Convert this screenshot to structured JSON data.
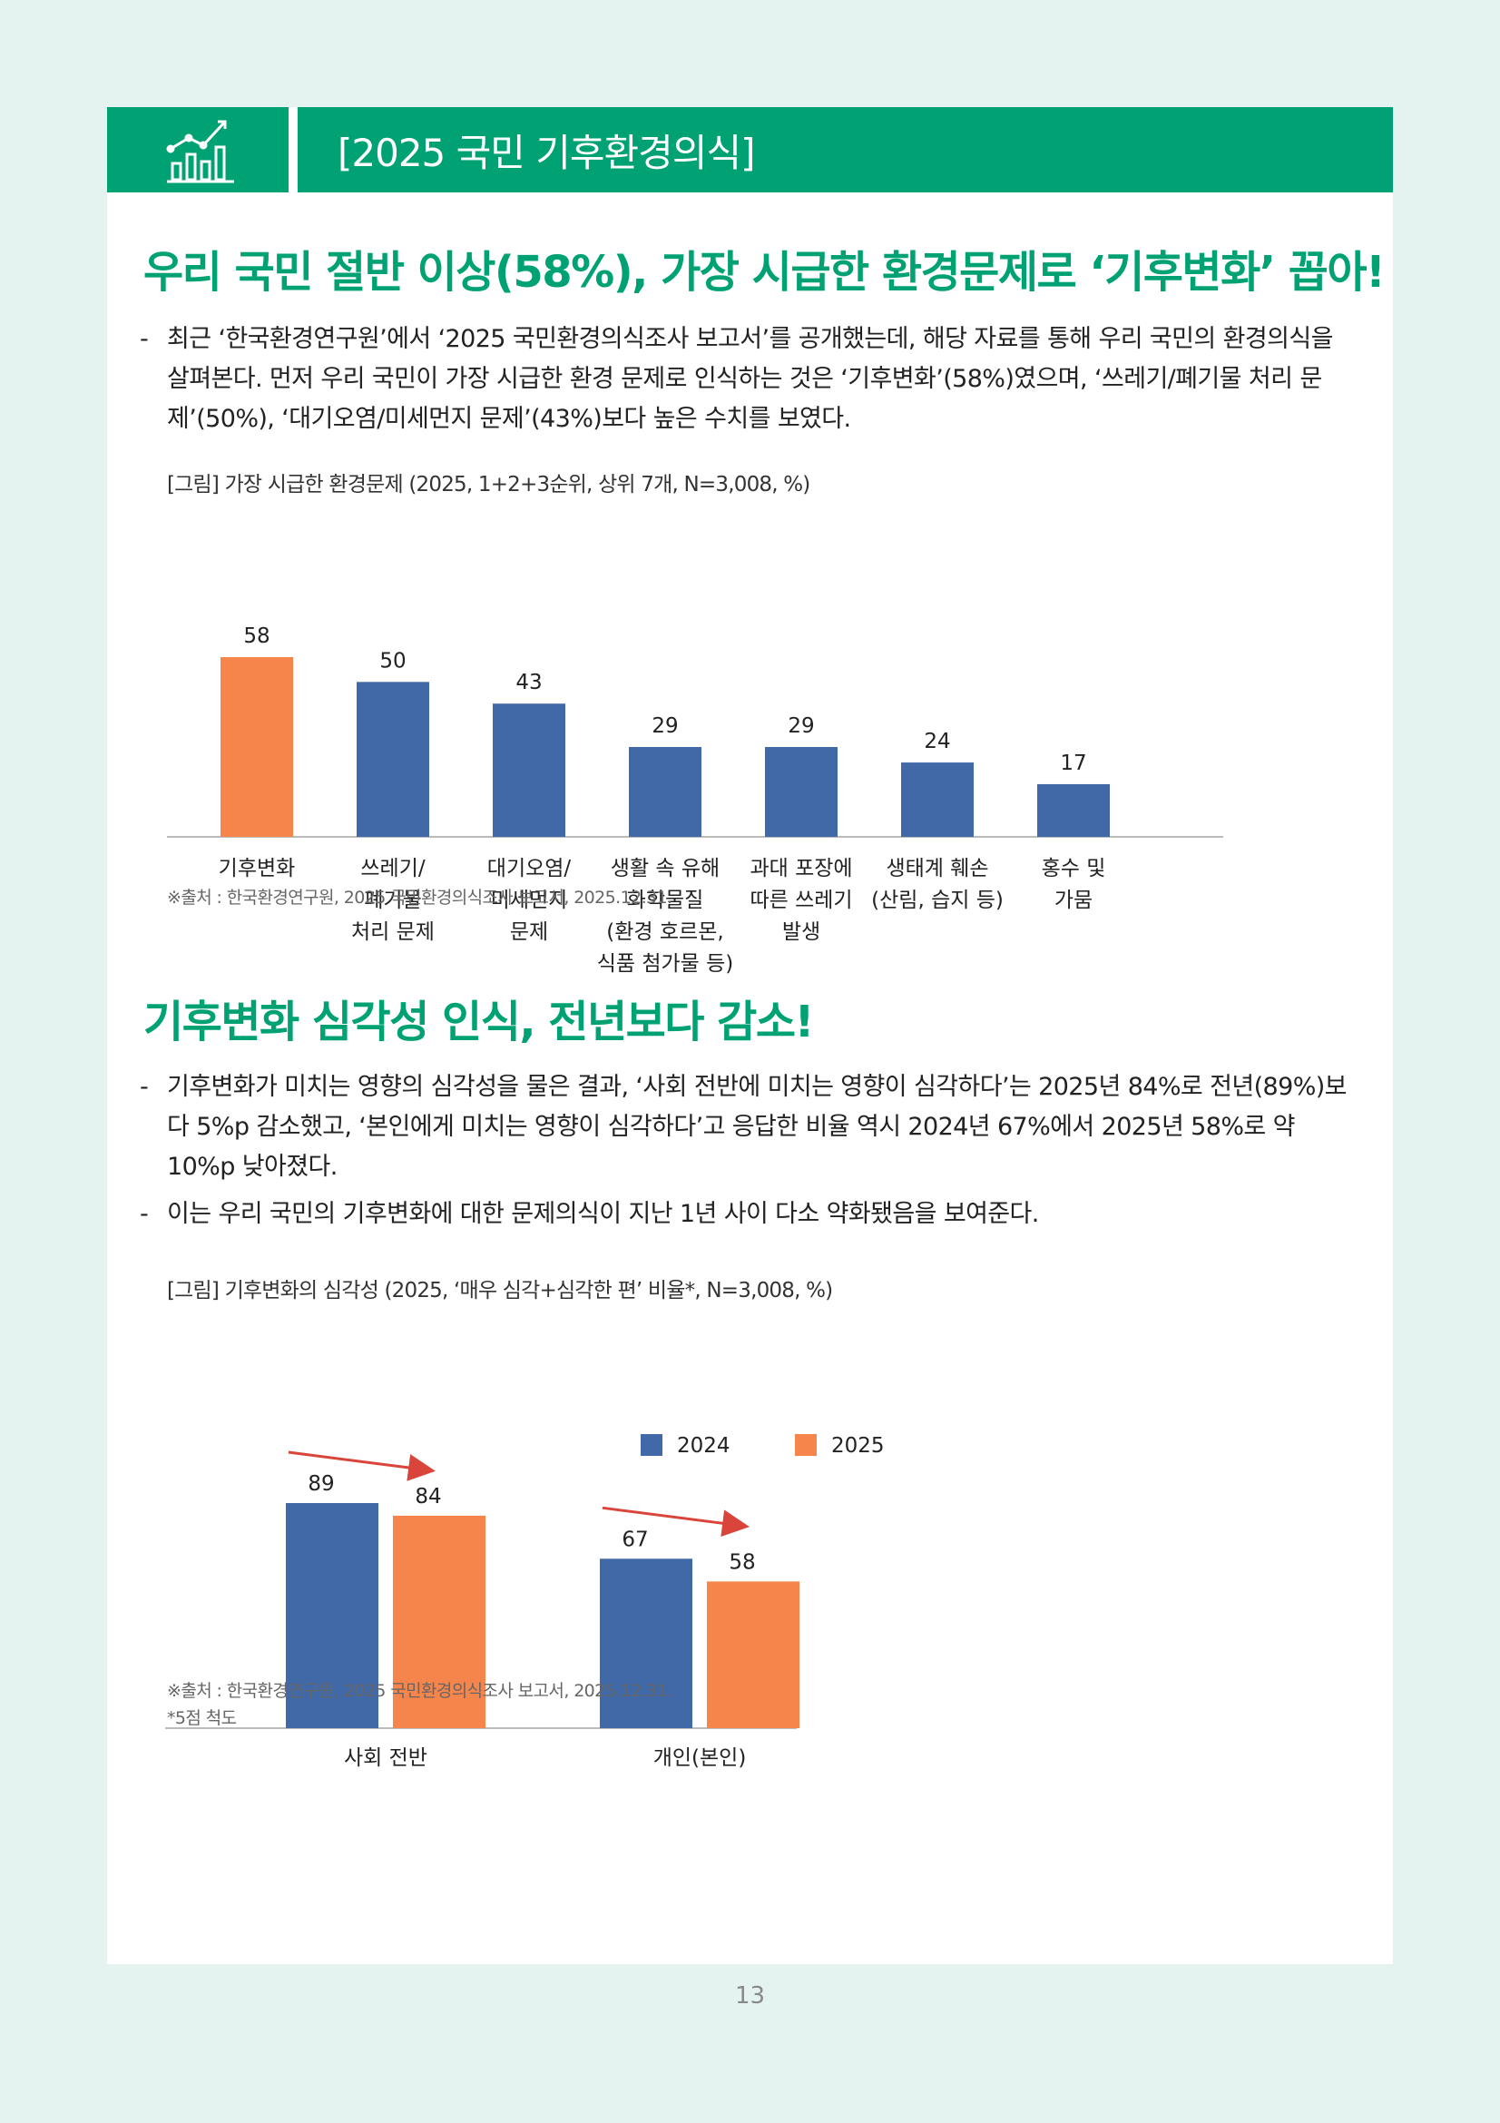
{
  "header": {
    "title": "[2025 국민 기후환경의식]",
    "icon": "chart-icon"
  },
  "section1": {
    "headline": "우리 국민 절반 이상(58%), 가장 시급한 환경문제로 ‘기후변화’ 꼽아!",
    "bullets": [
      "최근 ‘한국환경연구원’에서 ‘2025 국민환경의식조사 보고서’를 공개했는데, 해당 자료를 통해 우리 국민의 환경의식을 살펴본다. 먼저 우리 국민이 가장 시급한 환경 문제로 인식하는 것은 ‘기후변화’(58%)였으며, ‘쓰레기/폐기물 처리 문제’(50%), ‘대기오염/미세먼지 문제’(43%)보다 높은 수치를 보였다."
    ],
    "caption": "[그림] 가장 시급한 환경문제 (2025, 1+2+3순위, 상위 7개, N=3,008, %)",
    "source": "※출처 : 한국환경연구원, 2025 국민환경의식조사 보고서, 2025.12.31."
  },
  "section2": {
    "headline": "기후변화 심각성 인식, 전년보다 감소!",
    "bullets": [
      "기후변화가 미치는 영향의 심각성을 물은 결과, ‘사회 전반에 미치는 영향이 심각하다’는 2025년 84%로 전년(89%)보다 5%p 감소했고, ‘본인에게 미치는 영향이 심각하다’고 응답한 비율 역시 2024년 67%에서 2025년 58%로 약 10%p 낮아졌다.",
      "이는 우리 국민의 기후변화에 대한 문제의식이 지난 1년 사이 다소 약화됐음을 보여준다."
    ],
    "caption": "[그림] 기후변화의 심각성 (2025, ‘매우 심각+심각한 편’ 비율*, N=3,008, %)",
    "source": "※출처 : 한국환경연구원, 2025 국민환경의식조사 보고서, 2025.12.31.",
    "note": "*5점 척도"
  },
  "page_number": "13",
  "colors": {
    "green": "#00a273",
    "blue": "#4169a8",
    "orange": "#f5854a",
    "arrow": "#d9453a"
  },
  "chart_data": [
    {
      "type": "bar",
      "title": "",
      "categories": [
        [
          "기후변화"
        ],
        [
          "쓰레기/",
          "폐기물",
          "처리 문제"
        ],
        [
          "대기오염/",
          "미세먼지",
          "문제"
        ],
        [
          "생활 속 유해",
          "화학물질",
          "(환경 호르몬,",
          "식품 첨가물 등)"
        ],
        [
          "과대 포장에",
          "따른 쓰레기",
          "발생"
        ],
        [
          "생태계 훼손",
          "(산림, 습지 등)"
        ],
        [
          "홍수 및",
          "가뭄"
        ]
      ],
      "values": [
        58,
        50,
        43,
        29,
        29,
        24,
        17
      ],
      "highlight_index": 0,
      "ylim": [
        0,
        58
      ],
      "grid": false
    },
    {
      "type": "bar",
      "title": "",
      "categories": [
        "사회 전반",
        "개인(본인)"
      ],
      "series": [
        {
          "name": "2024",
          "values": [
            89,
            67
          ]
        },
        {
          "name": "2025",
          "values": [
            84,
            58
          ]
        }
      ],
      "legend_position": "top",
      "ylim": [
        0,
        89
      ],
      "grid": false
    }
  ]
}
